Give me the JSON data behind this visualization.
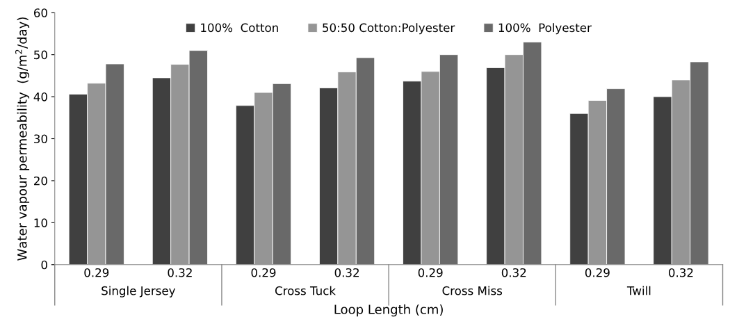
{
  "chart_data": {
    "type": "bar",
    "xlabel": "Loop Length (cm)",
    "ylabel": "Water vapour permeability  (g/m$^{2}$/day)",
    "categories": [
      "0.29",
      "0.32",
      "0.29",
      "0.32",
      "0.29",
      "0.32",
      "0.29",
      "0.32"
    ],
    "annotations": [
      "Single Jersey",
      "Cross Tuck",
      "Cross Miss",
      "Twill"
    ],
    "series": [
      {
        "name": "100%  Cotton",
        "color": "#404040",
        "values": [
          40.6,
          44.5,
          37.9,
          42.1,
          43.7,
          46.9,
          36,
          40
        ]
      },
      {
        "name": "50:50 Cotton:Polyester",
        "color": "#959595",
        "values": [
          43.2,
          47.7,
          41,
          45.9,
          46,
          50,
          39.1,
          44
        ]
      },
      {
        "name": "100%  Polyester",
        "color": "#696969",
        "values": [
          47.8,
          51,
          43.1,
          49.3,
          50,
          53,
          41.9,
          48.3
        ]
      }
    ],
    "ylim": [
      0,
      60
    ],
    "yticks": [
      0,
      10,
      20,
      30,
      40,
      50,
      60
    ],
    "grid": false,
    "legend": "top"
  }
}
